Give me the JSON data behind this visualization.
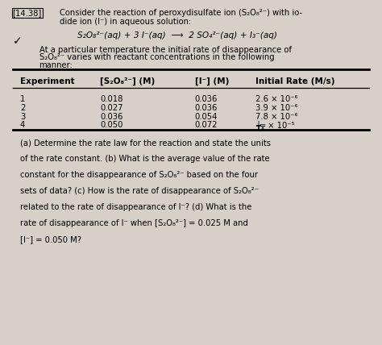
{
  "bg_color": "#d6d0c8",
  "title_bracket": "[14.38]",
  "col_headers": [
    "Experiment",
    "[S₂O₈²⁻] (M)",
    "[I⁻] (M)",
    "Initial Rate (M/s)"
  ],
  "table_data": [
    [
      "1",
      "0.018",
      "0.036",
      "2.6 × 10⁻⁶"
    ],
    [
      "2",
      "0.027",
      "0.036",
      "3.9 × 10⁻⁶"
    ],
    [
      "3",
      "0.036",
      "0.054",
      "7.8 × 10⁻⁶"
    ],
    [
      "4",
      "0.050",
      "0.072",
      "╈╦ × 10⁻⁵"
    ]
  ],
  "questions": "(a) Determine the rate law for the reaction and state the units\nof the rate constant. (b) What is the average value of the rate\nconstant for the disappearance of S₂O₈²⁻ based on the four\nsets of data? (c) How is the rate of disappearance of S₂O₈²⁻\nrelated to the rate of disappearance of I⁻? (d) What is the\nrate of disappearance of I⁻ when [S₂O₈²⁻] = 0.025 M and\n[I⁻] = 0.050 M?"
}
